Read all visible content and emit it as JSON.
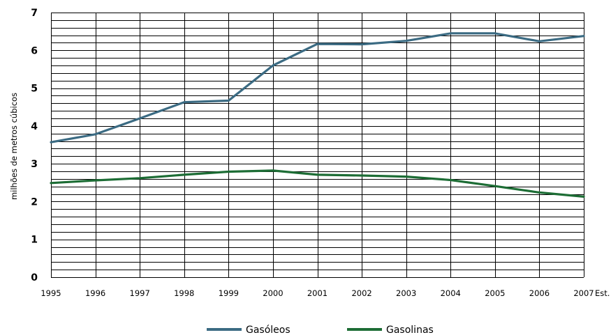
{
  "chart_data": {
    "type": "line",
    "ylabel": "milhões de metros cúbicos",
    "xlabel": "",
    "x": [
      "1995",
      "1996",
      "1997",
      "1998",
      "1999",
      "2000",
      "2001",
      "2002",
      "2003",
      "2004",
      "2005",
      "2006",
      "2007"
    ],
    "x_suffix_last": "Est.",
    "yticks": [
      "0",
      "1",
      "2",
      "3",
      "4",
      "5",
      "6",
      "7"
    ],
    "ylim": [
      0,
      7
    ],
    "minor_grid_step": 0.2,
    "grid": true,
    "legend_position": "bottom-center",
    "series": [
      {
        "name": "Gasóleos",
        "color": "#3b6b83",
        "values": [
          3.57,
          3.78,
          4.2,
          4.63,
          4.67,
          5.6,
          6.17,
          6.16,
          6.25,
          6.45,
          6.45,
          6.24,
          6.38
        ]
      },
      {
        "name": "Gasolinas",
        "color": "#1d6d35",
        "values": [
          2.49,
          2.56,
          2.62,
          2.71,
          2.79,
          2.82,
          2.71,
          2.69,
          2.66,
          2.57,
          2.41,
          2.24,
          2.13
        ]
      }
    ]
  }
}
